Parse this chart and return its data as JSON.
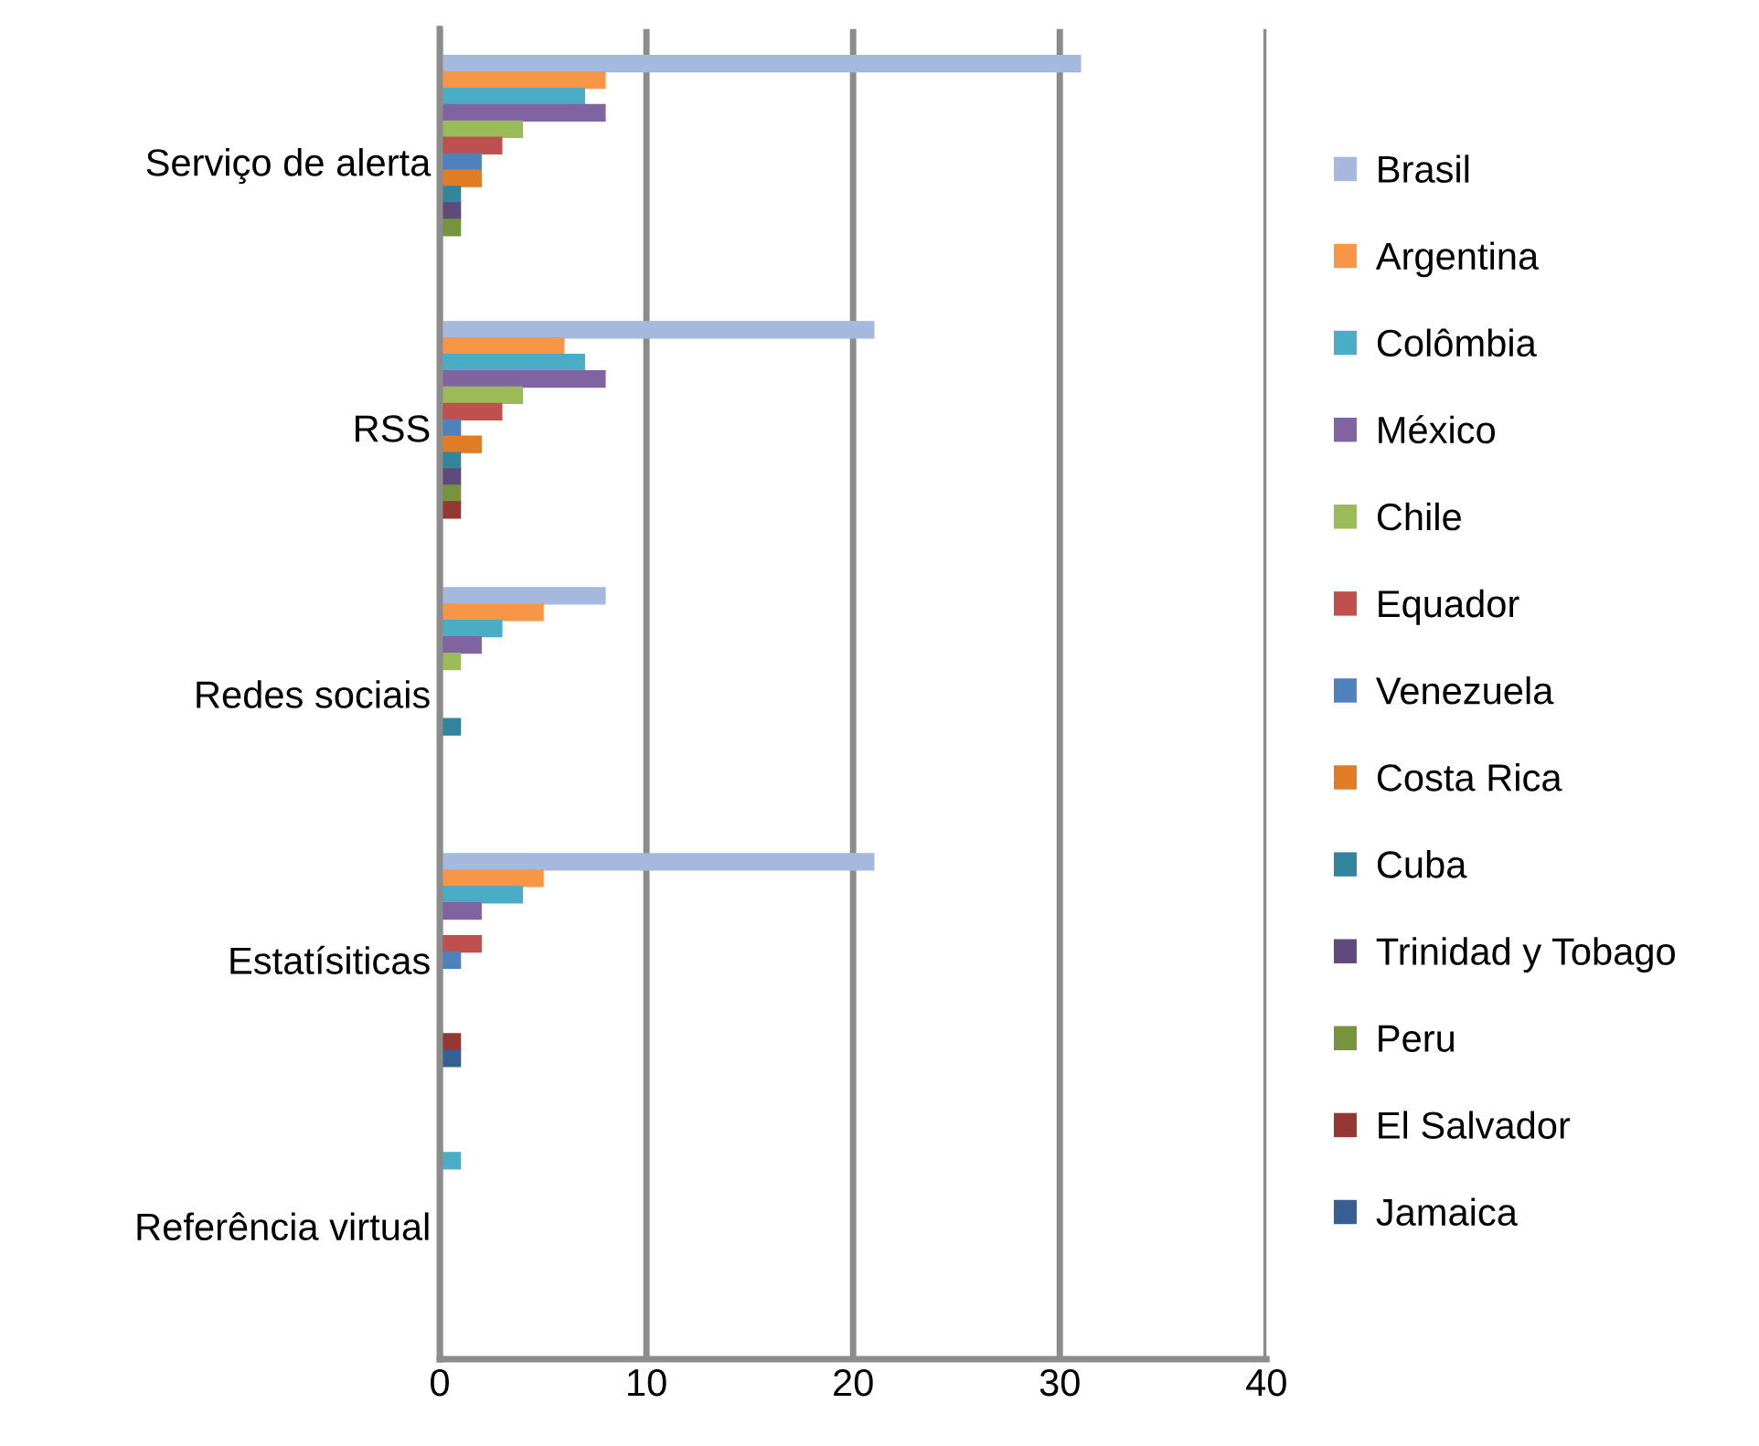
{
  "chart_data": {
    "type": "bar",
    "orientation": "horizontal",
    "categories": [
      "Serviço de alerta",
      "RSS",
      "Redes sociais",
      "Estatísiticas",
      "Referência virtual"
    ],
    "series": [
      {
        "name": "Brasil",
        "color": "#a5b8dd",
        "values": [
          31,
          21,
          8,
          21,
          0
        ]
      },
      {
        "name": "Argentina",
        "color": "#f79646",
        "values": [
          8,
          6,
          5,
          5,
          0
        ]
      },
      {
        "name": "Colômbia",
        "color": "#4bacc6",
        "values": [
          7,
          7,
          3,
          4,
          1
        ]
      },
      {
        "name": "México",
        "color": "#8064a2",
        "values": [
          8,
          8,
          2,
          2,
          0
        ]
      },
      {
        "name": "Chile",
        "color": "#9bbb59",
        "values": [
          4,
          4,
          1,
          0,
          0
        ]
      },
      {
        "name": "Equador",
        "color": "#c0504d",
        "values": [
          3,
          3,
          0,
          2,
          0
        ]
      },
      {
        "name": "Venezuela",
        "color": "#4f81bd",
        "values": [
          2,
          1,
          0,
          1,
          0
        ]
      },
      {
        "name": "Costa Rica",
        "color": "#e07b26",
        "values": [
          2,
          2,
          0,
          0,
          0
        ]
      },
      {
        "name": "Cuba",
        "color": "#31859c",
        "values": [
          1,
          1,
          1,
          0,
          0
        ]
      },
      {
        "name": "Trinidad y Tobago",
        "color": "#604a7b",
        "values": [
          1,
          1,
          0,
          0,
          0
        ]
      },
      {
        "name": "Peru",
        "color": "#77933c",
        "values": [
          1,
          1,
          0,
          0,
          0
        ]
      },
      {
        "name": "El Salvador",
        "color": "#953735",
        "values": [
          0,
          1,
          0,
          1,
          0
        ]
      },
      {
        "name": "Jamaica",
        "color": "#376092",
        "values": [
          0,
          0,
          0,
          1,
          0
        ]
      }
    ],
    "xlim": [
      0,
      40
    ],
    "xticks": [
      0,
      10,
      20,
      30,
      40
    ],
    "grid": "x",
    "legend": "right"
  }
}
